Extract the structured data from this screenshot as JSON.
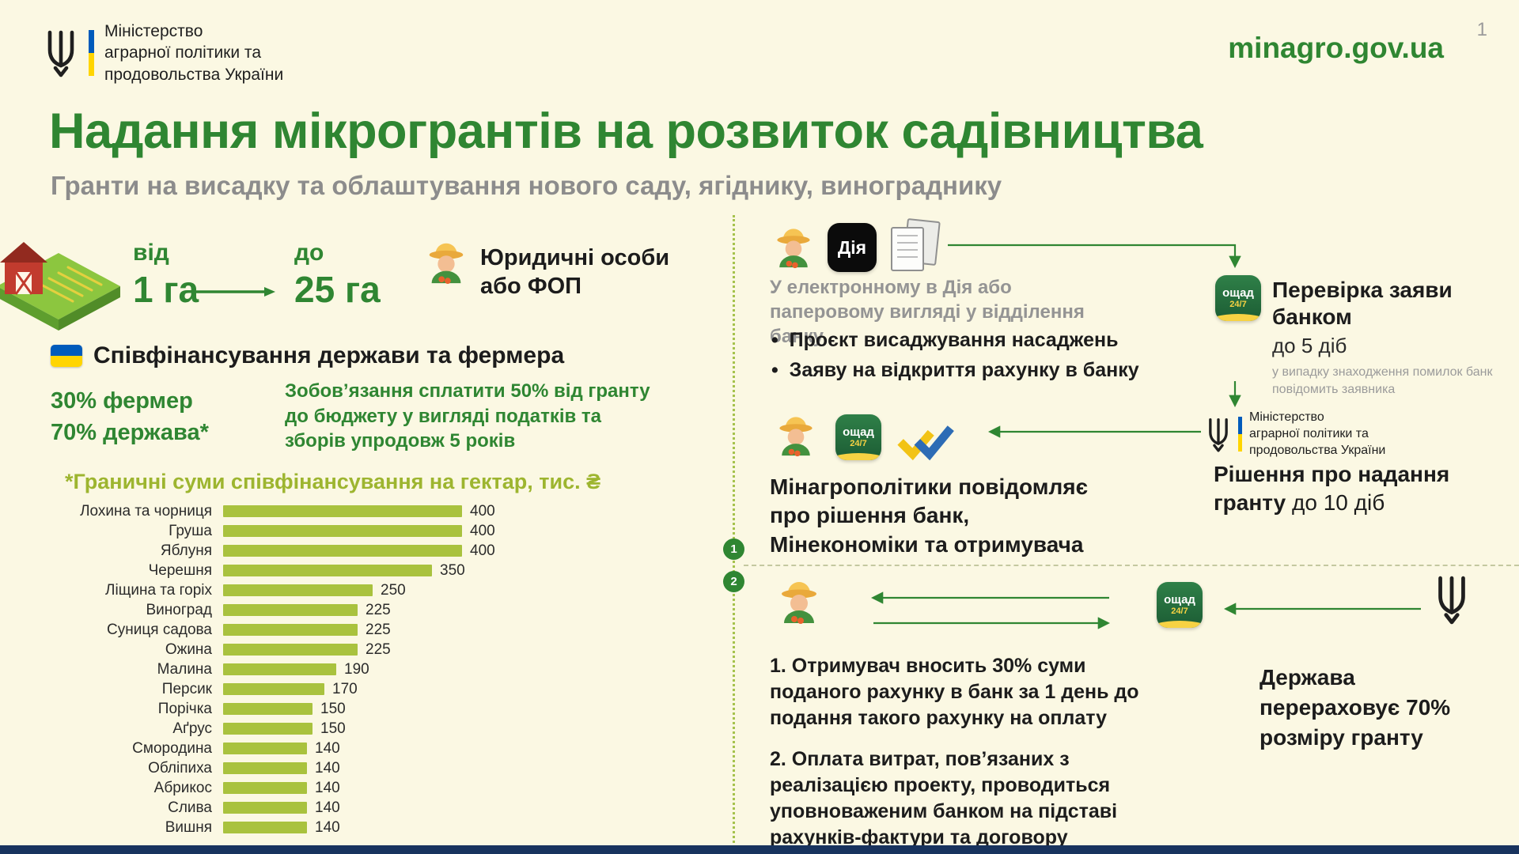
{
  "meta": {
    "page_number": "1",
    "site": "minagro.gov.ua"
  },
  "ministry": {
    "lines": [
      "Міністерство",
      "аграрної політики та",
      "продовольства України"
    ]
  },
  "title": "Надання мікрогрантів на розвиток садівництва",
  "subtitle": "Гранти на висадку та облаштування нового саду, ягіднику, винограднику",
  "conditions": {
    "from_label": "від",
    "from_value": "1 га",
    "to_label": "до",
    "to_value": "25 га",
    "eligibility": "Юридичні особи або ФОП",
    "cofinancing_title": "Співфінансування держави та фермера",
    "farmer_share": "30% фермер",
    "state_share": "70% держава*",
    "obligation": "Зобов’язання сплатити 50% від гранту до бюджету у вигляді податків та зборів упродовж 5 років"
  },
  "chart_data": {
    "type": "bar",
    "orientation": "horizontal",
    "title": "*Граничні суми співфінансування на гектар, тис. ₴",
    "categories": [
      "Лохина та чорниця",
      "Груша",
      "Яблуня",
      "Черешня",
      "Ліщина та горіх",
      "Виноград",
      "Суниця садова",
      "Ожина",
      "Малина",
      "Персик",
      "Порічка",
      "Аґрус",
      "Смородина",
      "Обліпиха",
      "Абрикос",
      "Слива",
      "Вишня"
    ],
    "values": [
      400,
      400,
      400,
      350,
      250,
      225,
      225,
      225,
      190,
      170,
      150,
      150,
      140,
      140,
      140,
      140,
      140
    ],
    "xlim": [
      0,
      400
    ],
    "unit": "тис. ₴",
    "bar_color": "#A9C23E",
    "grid": false,
    "legend": false
  },
  "flow": {
    "dia_label": "Дія",
    "oschad_label": "ощад",
    "oschad_badge": "24/7",
    "submission_note": "У електронному в Дія або паперовому вигляді у відділення банку",
    "bullets": [
      "Проєкт висаджування насаджень",
      "Заяву на відкриття рахунку в банку"
    ],
    "verification_title": "Перевірка заяви банком",
    "verification_term": "до 5 діб",
    "verification_note": "у випадку знаходження помилок банк повідомить заявника",
    "decision_title": "Рішення про надання гранту",
    "decision_term": "до 10 діб",
    "notify_text": "Мінагрополітики повідомляє про рішення банк, Мінекономіки та отримувача",
    "step1_badge": "1",
    "step2_badge": "2",
    "payment_step1": "1. Отримувач вносить 30% суми поданого рахунку в банк за 1 день до подання такого рахунку на оплату",
    "payment_step2": "2. Оплата витрат, пов’язаних з реалізацією проекту, проводиться уповноваженим банком на підставі рахунків-фактури та договору",
    "state_transfer": "Держава перераховує 70% розміру гранту"
  },
  "colors": {
    "accent_green": "#2F8632",
    "olive": "#A9C23E",
    "flag_blue": "#005BBB",
    "flag_yellow": "#FFD500",
    "footer_navy": "#18335E"
  }
}
